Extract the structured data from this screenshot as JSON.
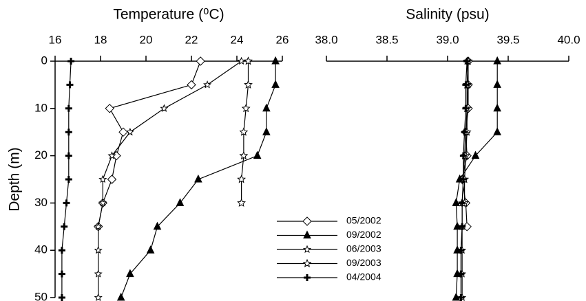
{
  "chart_data": [
    {
      "type": "line",
      "title": "Temperature (⁰C)",
      "y_label": "Depth (m)",
      "y": [
        0,
        5,
        10,
        15,
        20,
        25,
        30,
        35,
        40,
        45,
        50
      ],
      "xlim": [
        16,
        26
      ],
      "xticks": [
        16,
        18,
        20,
        22,
        24,
        26
      ],
      "ylim": [
        0,
        50
      ],
      "yticks": [
        0,
        10,
        20,
        30,
        40,
        50
      ],
      "y_inverted": true,
      "legend_corner": "lower right",
      "series": [
        {
          "name": "05/2002",
          "color": "#000000",
          "marker": "diamond",
          "values": [
            22.4,
            22.0,
            18.4,
            19.0,
            18.7,
            18.5,
            18.1,
            17.9,
            null,
            null,
            null
          ]
        },
        {
          "name": "09/2002",
          "color": "#000000",
          "marker": "triangle",
          "values": [
            25.7,
            25.7,
            25.3,
            25.3,
            24.9,
            22.3,
            21.5,
            20.5,
            20.2,
            19.3,
            18.9
          ]
        },
        {
          "name": "06/2003",
          "color": "#000000",
          "marker": "star",
          "values": [
            24.2,
            22.7,
            20.8,
            19.3,
            18.5,
            18.1,
            18.1,
            17.9,
            17.9,
            17.9,
            17.9
          ]
        },
        {
          "name": "09/2003",
          "color": "#000000",
          "marker": "star-open",
          "values": [
            24.5,
            24.5,
            24.4,
            24.3,
            24.3,
            24.2,
            24.2,
            null,
            null,
            null,
            null
          ]
        },
        {
          "name": "04/2004",
          "color": "#000000",
          "marker": "plus",
          "values": [
            16.7,
            16.65,
            16.6,
            16.6,
            16.6,
            16.6,
            16.5,
            16.4,
            16.3,
            16.3,
            16.3
          ]
        }
      ]
    },
    {
      "type": "line",
      "title": "Salinity (psu)",
      "y": [
        0,
        5,
        10,
        15,
        20,
        25,
        30,
        35,
        40,
        45,
        50
      ],
      "xlim": [
        38,
        40
      ],
      "xticks": [
        {
          "value": 38,
          "label": "38.0"
        },
        38.5,
        {
          "value": 39,
          "label": "39.0"
        },
        39.5,
        {
          "value": 40,
          "label": "40.0"
        }
      ],
      "ylim": [
        0,
        50
      ],
      "y_inverted": true,
      "series": [
        {
          "color": "#000000",
          "marker": "diamond",
          "values": [
            39.17,
            39.17,
            39.17,
            39.15,
            39.16,
            39.12,
            39.15,
            39.16,
            null,
            null,
            null
          ]
        },
        {
          "color": "#000000",
          "marker": "triangle",
          "values": [
            39.41,
            39.41,
            39.41,
            39.41,
            39.23,
            39.1,
            39.07,
            39.08,
            39.08,
            39.08,
            39.07
          ]
        },
        {
          "color": "#000000",
          "marker": "star",
          "values": [
            39.16,
            39.17,
            39.16,
            39.15,
            39.14,
            39.13,
            39.12,
            39.12,
            39.12,
            39.12,
            39.12
          ]
        },
        {
          "color": "#000000",
          "marker": "star-open",
          "values": [
            39.17,
            39.16,
            39.16,
            39.16,
            39.15,
            39.14,
            39.14,
            null,
            null,
            null,
            null
          ]
        },
        {
          "color": "#000000",
          "marker": "plus",
          "values": [
            39.16,
            39.15,
            39.15,
            39.14,
            39.13,
            39.13,
            39.12,
            39.12,
            39.11,
            39.11,
            39.11
          ]
        }
      ]
    }
  ]
}
